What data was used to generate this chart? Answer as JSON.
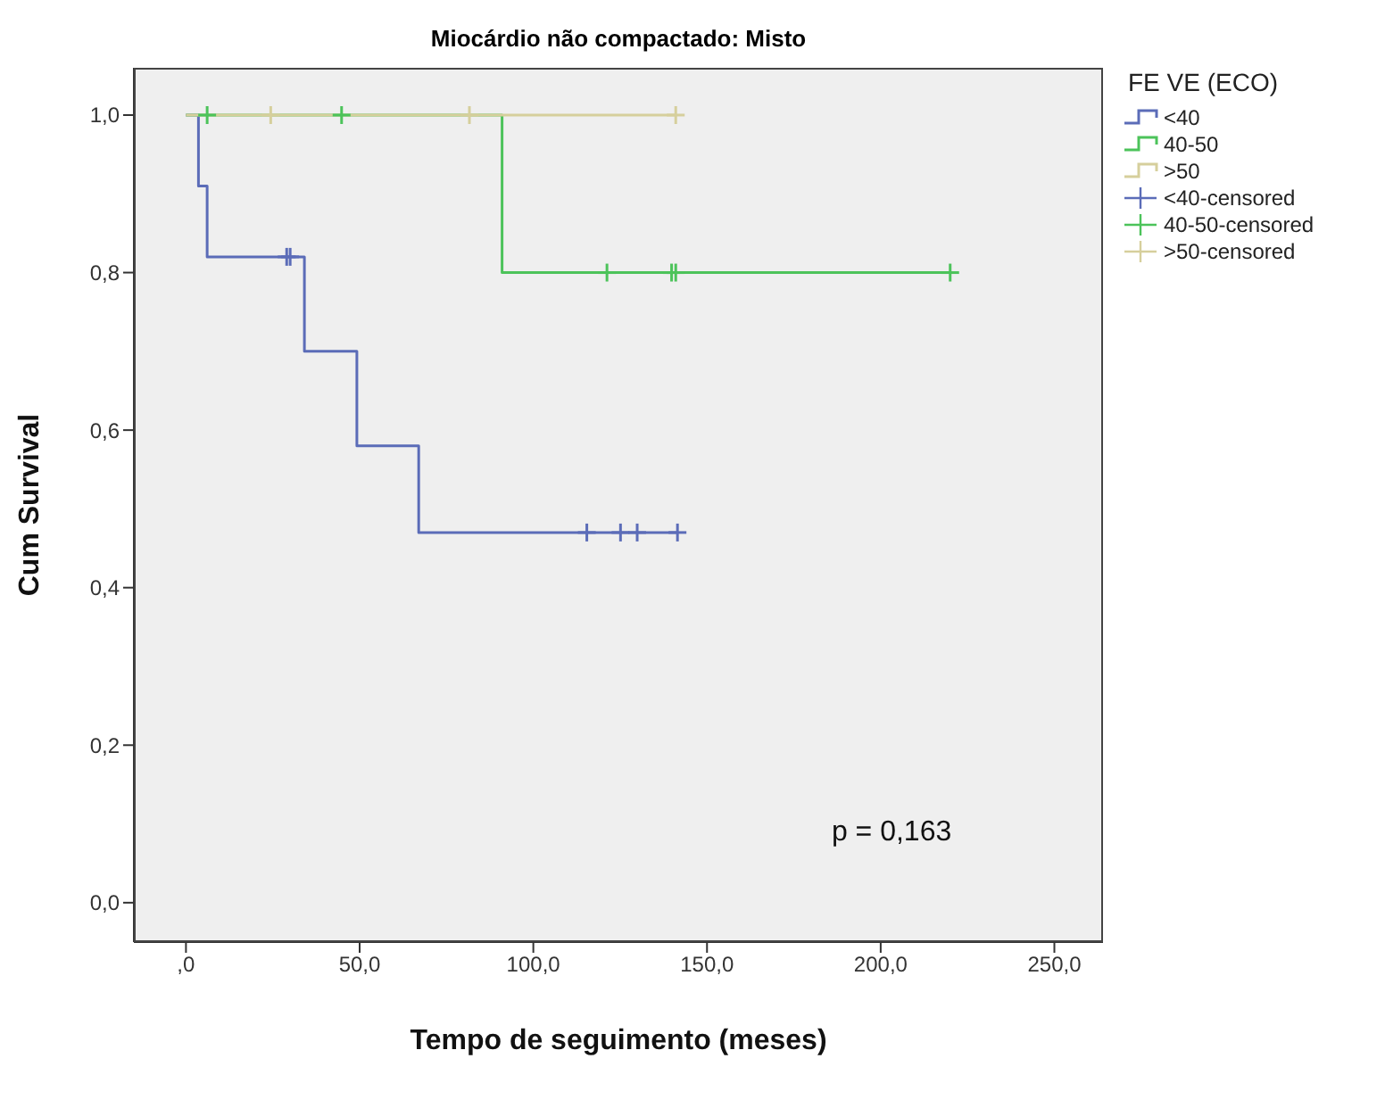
{
  "chart_data": {
    "type": "step",
    "title": "Miocárdio não compactado: Misto",
    "xlabel": "Tempo de seguimento (meses)",
    "ylabel": "Cum Survival",
    "legend_title": "FE VE (ECO)",
    "legend": "right",
    "grid": false,
    "xlim": [
      -15,
      264
    ],
    "xticks": [
      {
        "value": 0,
        "label": ",0"
      },
      {
        "value": 50,
        "label": "50,0"
      },
      {
        "value": 100,
        "label": "100,0"
      },
      {
        "value": 150,
        "label": "150,0"
      },
      {
        "value": 200,
        "label": "200,0"
      },
      {
        "value": 250,
        "label": "250,0"
      }
    ],
    "ylim": [
      -0.05,
      1.06
    ],
    "yticks": [
      {
        "value": 0,
        "label": "0,0"
      },
      {
        "value": 0.2,
        "label": "0,2"
      },
      {
        "value": 0.4,
        "label": "0,4"
      },
      {
        "value": 0.6,
        "label": "0,6"
      },
      {
        "value": 0.8,
        "label": "0,8"
      },
      {
        "value": 1,
        "label": "1,0"
      }
    ],
    "series": [
      {
        "name": "<40",
        "color": "#5b6cb8",
        "x": [
          0,
          3.6,
          6.1,
          34.1,
          49.2,
          67,
          141.5
        ],
        "values": [
          1,
          0.91,
          0.82,
          0.7,
          0.58,
          0.47,
          0.47
        ]
      },
      {
        "name": "40-50",
        "color": "#4cc35a",
        "x": [
          0,
          91,
          220
        ],
        "values": [
          1,
          0.8,
          0.8
        ]
      },
      {
        "name": ">50",
        "color": "#d6cf9c",
        "x": [
          0,
          141
        ],
        "values": [
          1,
          1
        ]
      },
      {
        "name": "<40-censored",
        "type": "scatter",
        "marker": "cross",
        "color": "#5b6cb8",
        "x": [
          29,
          30,
          115.4,
          125.1,
          129.9,
          141.5
        ],
        "values": [
          0.82,
          0.82,
          0.47,
          0.47,
          0.47,
          0.47
        ]
      },
      {
        "name": "40-50-censored",
        "type": "scatter",
        "marker": "cross",
        "color": "#4cc35a",
        "x": [
          6.1,
          44.8,
          121.2,
          139.8,
          141,
          220
        ],
        "values": [
          1,
          1,
          0.8,
          0.8,
          0.8,
          0.8
        ]
      },
      {
        "name": ">50-censored",
        "type": "scatter",
        "marker": "cross",
        "color": "#d6cf9c",
        "x": [
          24.4,
          81.6,
          141
        ],
        "values": [
          1,
          1,
          1
        ]
      }
    ],
    "annotations": [
      "p = 0,163"
    ]
  }
}
